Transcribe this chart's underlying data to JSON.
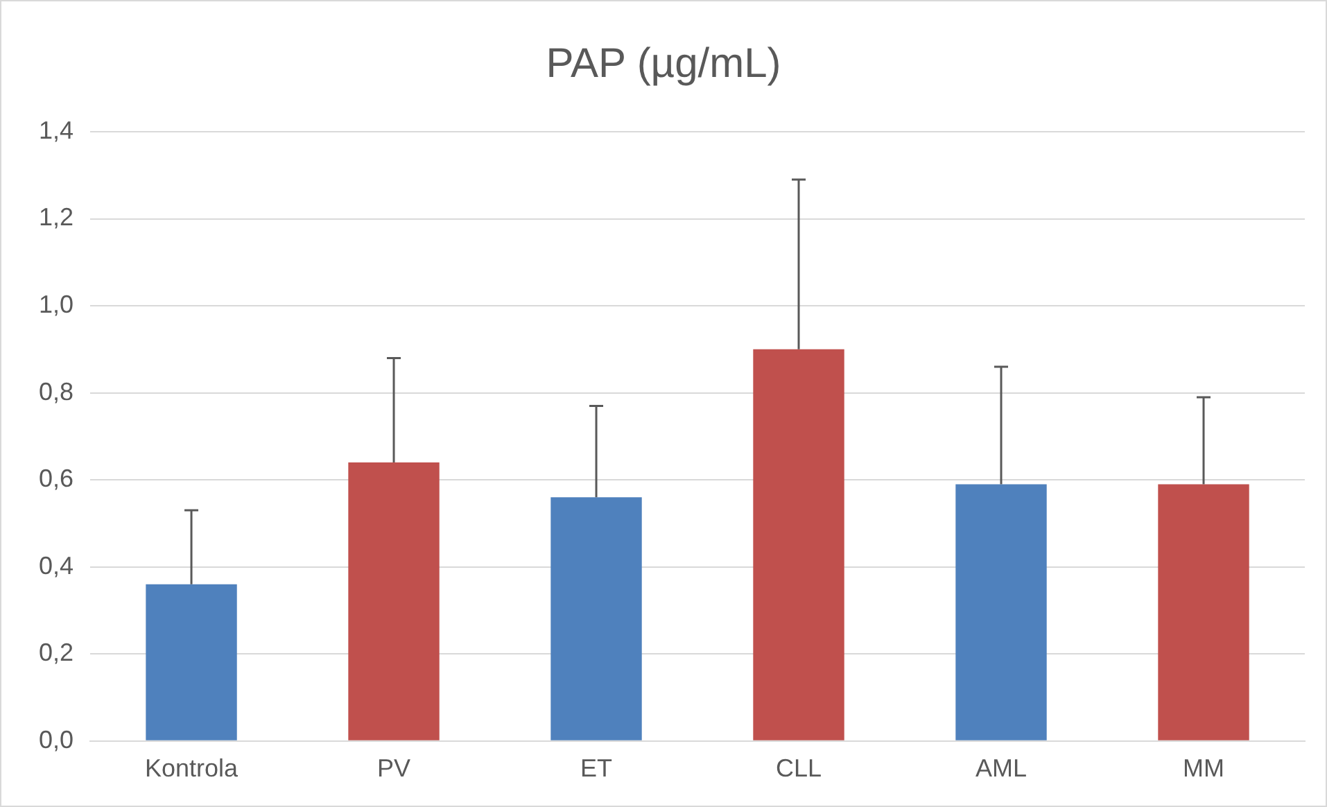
{
  "chart_data": {
    "type": "bar",
    "title": "PAP (µg/mL)",
    "categories": [
      "Kontrola",
      "PV",
      "ET",
      "CLL",
      "AML",
      "MM"
    ],
    "values": [
      0.36,
      0.64,
      0.56,
      0.9,
      0.59,
      0.59
    ],
    "colors": [
      "#4f81bd",
      "#c0504d",
      "#4f81bd",
      "#c0504d",
      "#4f81bd",
      "#c0504d"
    ],
    "errors": [
      [
        0.36,
        0.53
      ],
      [
        0.64,
        0.88
      ],
      [
        0.56,
        0.77
      ],
      [
        0.9,
        1.29
      ],
      [
        0.59,
        0.86
      ],
      [
        0.59,
        0.79
      ]
    ],
    "ylim": [
      0,
      1.4
    ],
    "yticks": [
      {
        "value": 0,
        "label": "0,0"
      },
      {
        "value": 0.2,
        "label": "0,2"
      },
      {
        "value": 0.4,
        "label": "0,4"
      },
      {
        "value": 0.6,
        "label": "0,6"
      },
      {
        "value": 0.8,
        "label": "0,8"
      },
      {
        "value": 1,
        "label": "1,0"
      },
      {
        "value": 1.2,
        "label": "1,2"
      },
      {
        "value": 1.4,
        "label": "1,4"
      }
    ],
    "grid": "y",
    "legend": false
  }
}
